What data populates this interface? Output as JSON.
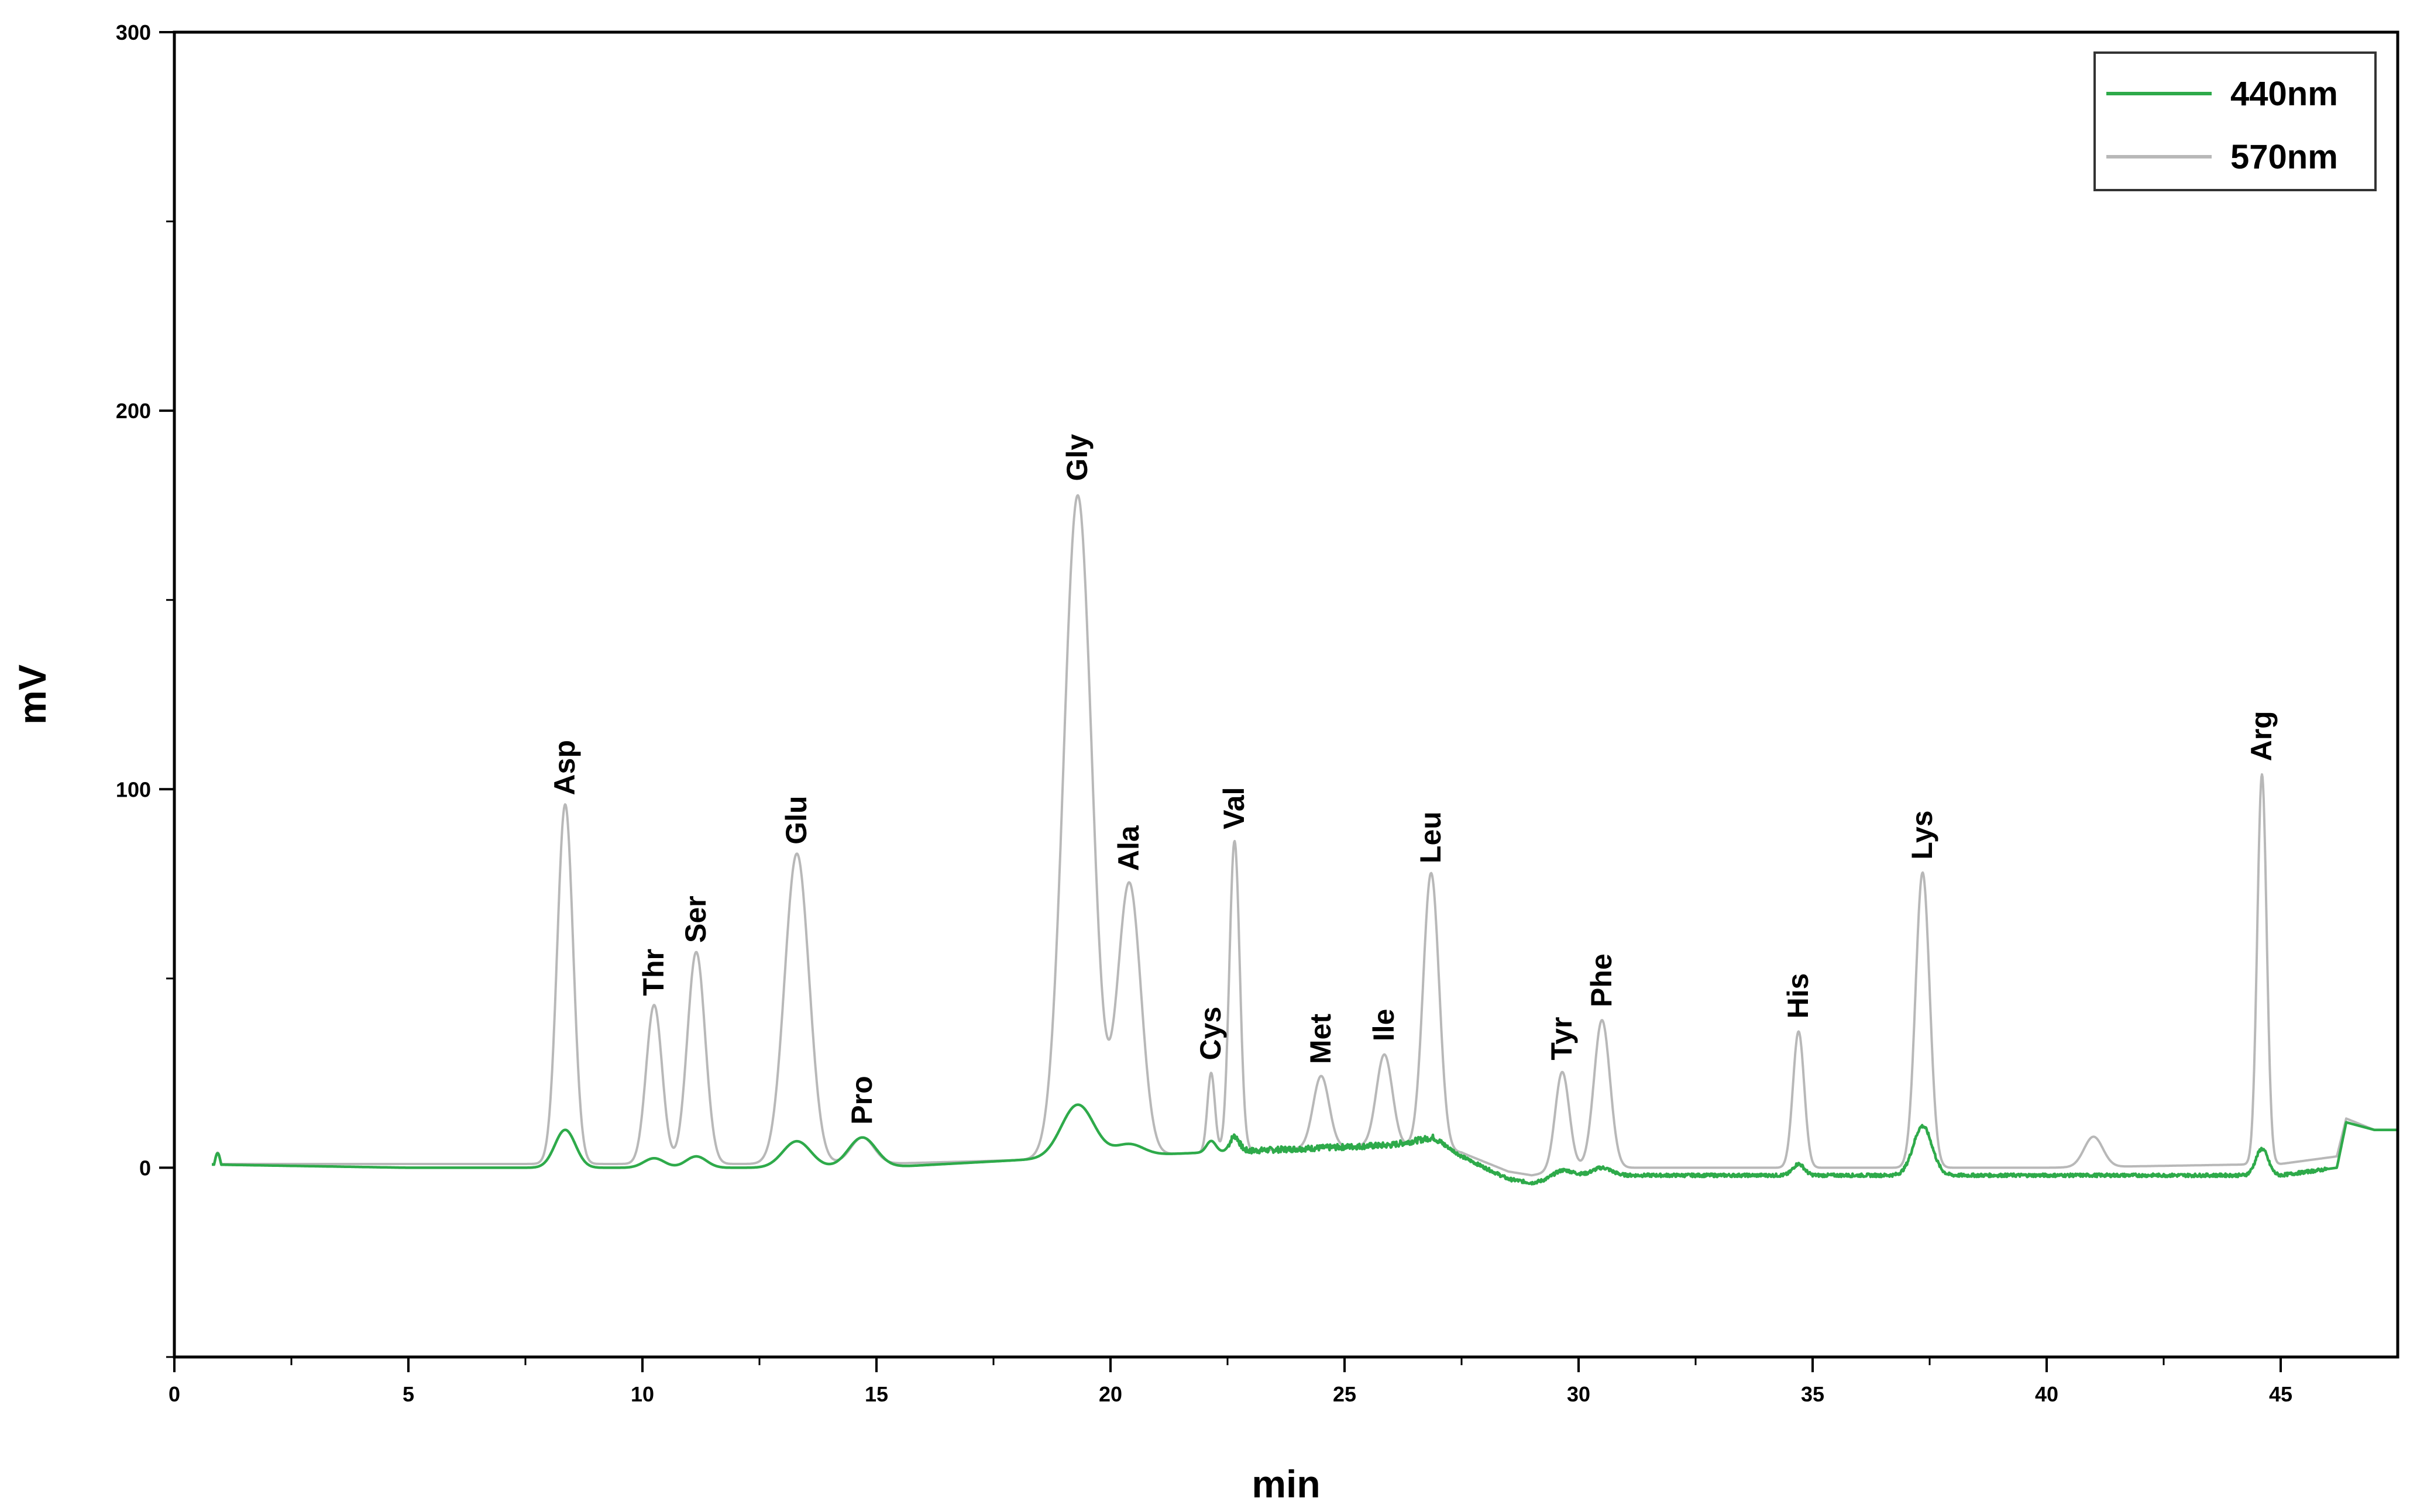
{
  "chart_data": {
    "type": "line",
    "title": "",
    "xlabel": "min",
    "ylabel": "mV",
    "xlim": [
      0,
      47.5
    ],
    "ylim": [
      -50,
      300
    ],
    "x_ticks": [
      0,
      5,
      10,
      15,
      20,
      25,
      30,
      35,
      40,
      45
    ],
    "x_tick_labels": [
      "0",
      "5",
      "10",
      "15",
      "20",
      "25",
      "30",
      "35",
      "40",
      "45"
    ],
    "y_ticks": [
      0,
      100,
      200,
      300
    ],
    "y_tick_labels": [
      "0",
      "100",
      "200",
      "300"
    ],
    "grid": false,
    "legend_position": "top-right",
    "colors": {
      "440nm": "#2eaa4a",
      "570nm": "#b8b8b8"
    },
    "series": [
      {
        "name": "440nm",
        "baseline": [
          [
            0,
            1
          ],
          [
            5,
            0
          ],
          [
            10,
            0
          ],
          [
            15,
            0
          ],
          [
            18,
            2
          ],
          [
            20,
            3
          ],
          [
            22,
            4
          ],
          [
            24,
            5
          ],
          [
            26,
            6
          ],
          [
            26.9,
            8
          ],
          [
            27.5,
            3
          ],
          [
            28.5,
            -3
          ],
          [
            29,
            -4
          ],
          [
            30,
            -2
          ],
          [
            32,
            -2
          ],
          [
            35,
            -2
          ],
          [
            40,
            -2
          ],
          [
            45,
            -2
          ],
          [
            46.2,
            0
          ],
          [
            46.4,
            12
          ],
          [
            47,
            10
          ],
          [
            47.5,
            10
          ]
        ],
        "peaks": [
          {
            "label": "Asp",
            "rt": 8.35,
            "height": 10,
            "width": 0.22
          },
          {
            "label": "Thr",
            "rt": 10.25,
            "height": 2.5,
            "width": 0.22
          },
          {
            "label": "Ser",
            "rt": 11.15,
            "height": 3,
            "width": 0.22
          },
          {
            "label": "Glu",
            "rt": 13.3,
            "height": 7,
            "width": 0.3
          },
          {
            "label": "Pro",
            "rt": 14.7,
            "height": 8,
            "width": 0.3
          },
          {
            "label": "Gly",
            "rt": 19.3,
            "height": 14,
            "width": 0.35
          },
          {
            "label": "Ala",
            "rt": 20.4,
            "height": 3,
            "width": 0.3
          },
          {
            "label": "Cys",
            "rt": 22.15,
            "height": 3,
            "width": 0.1
          },
          {
            "label": "Val",
            "rt": 22.65,
            "height": 4,
            "width": 0.1
          },
          {
            "label": "Tyr",
            "rt": 29.65,
            "height": 2,
            "width": 0.2
          },
          {
            "label": "Phe",
            "rt": 30.5,
            "height": 2,
            "width": 0.2
          },
          {
            "label": "His",
            "rt": 34.7,
            "height": 3,
            "width": 0.12
          },
          {
            "label": "Lys",
            "rt": 37.35,
            "height": 13,
            "width": 0.2
          },
          {
            "label": "Arg",
            "rt": 44.6,
            "height": 7,
            "width": 0.13
          }
        ]
      },
      {
        "name": "570nm",
        "baseline": [
          [
            0,
            1
          ],
          [
            5,
            1
          ],
          [
            10,
            1
          ],
          [
            15,
            1
          ],
          [
            18,
            2
          ],
          [
            20,
            3
          ],
          [
            22,
            4
          ],
          [
            24,
            5
          ],
          [
            26,
            6
          ],
          [
            27.5,
            4
          ],
          [
            28.5,
            -1
          ],
          [
            29,
            -2
          ],
          [
            30,
            0
          ],
          [
            32,
            0
          ],
          [
            35,
            0
          ],
          [
            40,
            0
          ],
          [
            45,
            1
          ],
          [
            46.2,
            3
          ],
          [
            46.4,
            13
          ],
          [
            47,
            10
          ],
          [
            47.5,
            10
          ]
        ],
        "peaks": [
          {
            "label": "Asp",
            "rt": 8.35,
            "height": 95,
            "width": 0.17
          },
          {
            "label": "Thr",
            "rt": 10.25,
            "height": 42,
            "width": 0.17
          },
          {
            "label": "Ser",
            "rt": 11.15,
            "height": 56,
            "width": 0.19
          },
          {
            "label": "Glu",
            "rt": 13.3,
            "height": 82,
            "width": 0.26
          },
          {
            "label": "Pro",
            "rt": 14.7,
            "height": 7,
            "width": 0.25
          },
          {
            "label": "Gly",
            "rt": 19.3,
            "height": 175,
            "width": 0.3
          },
          {
            "label": "Ala",
            "rt": 20.4,
            "height": 72,
            "width": 0.25
          },
          {
            "label": "Cys",
            "rt": 22.15,
            "height": 21,
            "width": 0.08
          },
          {
            "label": "Val",
            "rt": 22.65,
            "height": 82,
            "width": 0.11
          },
          {
            "label": "Met",
            "rt": 24.5,
            "height": 19,
            "width": 0.17
          },
          {
            "label": "Ile",
            "rt": 25.85,
            "height": 24,
            "width": 0.17
          },
          {
            "label": "Leu",
            "rt": 26.85,
            "height": 73,
            "width": 0.17
          },
          {
            "label": "Tyr",
            "rt": 29.65,
            "height": 26,
            "width": 0.15
          },
          {
            "label": "Phe",
            "rt": 30.5,
            "height": 39,
            "width": 0.17
          },
          {
            "label": "His",
            "rt": 34.7,
            "height": 36,
            "width": 0.12
          },
          {
            "label": "Lys",
            "rt": 37.35,
            "height": 78,
            "width": 0.15
          },
          {
            "label": "unlabeled",
            "rt": 41.0,
            "height": 8,
            "width": 0.2
          },
          {
            "label": "Arg",
            "rt": 44.6,
            "height": 103,
            "width": 0.1
          }
        ]
      }
    ],
    "peak_labels": [
      {
        "text": "Asp",
        "rt": 8.35,
        "apex": 95
      },
      {
        "text": "Thr",
        "rt": 10.25,
        "apex": 42
      },
      {
        "text": "Ser",
        "rt": 11.15,
        "apex": 56
      },
      {
        "text": "Glu",
        "rt": 13.3,
        "apex": 82
      },
      {
        "text": "Pro",
        "rt": 14.7,
        "apex": 8
      },
      {
        "text": "Gly",
        "rt": 19.3,
        "apex": 178
      },
      {
        "text": "Ala",
        "rt": 20.4,
        "apex": 75
      },
      {
        "text": "Cys",
        "rt": 22.15,
        "apex": 25
      },
      {
        "text": "Val",
        "rt": 22.65,
        "apex": 86
      },
      {
        "text": "Met",
        "rt": 24.5,
        "apex": 24
      },
      {
        "text": "Ile",
        "rt": 25.85,
        "apex": 30
      },
      {
        "text": "Leu",
        "rt": 26.85,
        "apex": 77
      },
      {
        "text": "Tyr",
        "rt": 29.65,
        "apex": 25
      },
      {
        "text": "Phe",
        "rt": 30.5,
        "apex": 39
      },
      {
        "text": "His",
        "rt": 34.7,
        "apex": 36
      },
      {
        "text": "Lys",
        "rt": 37.35,
        "apex": 78
      },
      {
        "text": "Arg",
        "rt": 44.6,
        "apex": 104
      }
    ],
    "legend": [
      {
        "name": "440nm",
        "color": "#2eaa4a"
      },
      {
        "name": "570nm",
        "color": "#b8b8b8"
      }
    ]
  }
}
